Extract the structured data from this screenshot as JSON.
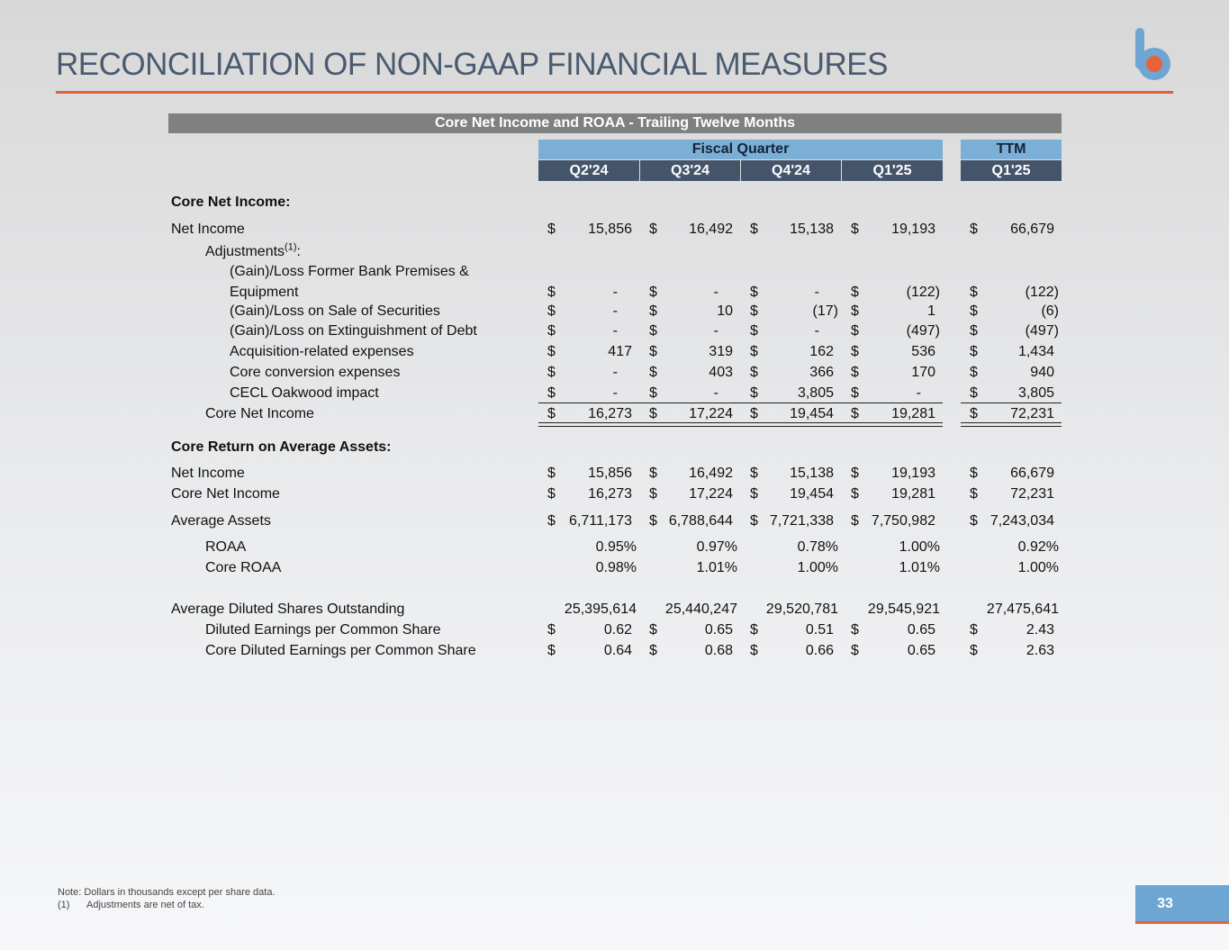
{
  "header": {
    "title": "RECONCILIATION OF NON-GAAP FINANCIAL MEASURES"
  },
  "table": {
    "title": "Core Net Income and ROAA - Trailing Twelve Months",
    "group_headers": [
      "Fiscal Quarter",
      "TTM"
    ],
    "columns": [
      "Q2'24",
      "Q3'24",
      "Q4'24",
      "Q1'25",
      "Q1'25"
    ],
    "sections": [
      {
        "heading": "Core Net Income:",
        "rows": [
          {
            "label": "Net Income",
            "currency": "$",
            "values": [
              "15,856",
              "16,492",
              "15,138",
              "19,193",
              "66,679"
            ]
          },
          {
            "label": "Adjustments",
            "note_ref": "(1)",
            "label_suffix": ":"
          },
          {
            "label": "(Gain)/Loss Former Bank Premises & Equipment",
            "currency": "$",
            "values": [
              "-",
              "-",
              "-",
              "(122)",
              "(122)"
            ]
          },
          {
            "label": "(Gain)/Loss on Sale of Securities",
            "currency": "$",
            "values": [
              "-",
              "10",
              "(17)",
              "1",
              "(6)"
            ]
          },
          {
            "label": "(Gain)/Loss on Extinguishment of Debt",
            "currency": "$",
            "values": [
              "-",
              "-",
              "-",
              "(497)",
              "(497)"
            ]
          },
          {
            "label": "Acquisition-related expenses",
            "currency": "$",
            "values": [
              "417",
              "319",
              "162",
              "536",
              "1,434"
            ]
          },
          {
            "label": "Core conversion expenses",
            "currency": "$",
            "values": [
              "-",
              "403",
              "366",
              "170",
              "940"
            ]
          },
          {
            "label": "CECL Oakwood impact",
            "currency": "$",
            "values": [
              "-",
              "-",
              "3,805",
              "-",
              "3,805"
            ]
          },
          {
            "label": "Core Net Income",
            "currency": "$",
            "values": [
              "16,273",
              "17,224",
              "19,454",
              "19,281",
              "72,231"
            ]
          }
        ]
      },
      {
        "heading": "Core Return on Average Assets:",
        "rows": [
          {
            "label": "Net Income",
            "currency": "$",
            "values": [
              "15,856",
              "16,492",
              "15,138",
              "19,193",
              "66,679"
            ]
          },
          {
            "label": "Core Net Income",
            "currency": "$",
            "values": [
              "16,273",
              "17,224",
              "19,454",
              "19,281",
              "72,231"
            ]
          },
          {
            "label": "Average Assets",
            "currency": "$",
            "values": [
              "6,711,173",
              "6,788,644",
              "7,721,338",
              "7,750,982",
              "7,243,034"
            ]
          },
          {
            "label": "ROAA",
            "values": [
              "0.95%",
              "0.97%",
              "0.78%",
              "1.00%",
              "0.92%"
            ]
          },
          {
            "label": "Core ROAA",
            "values": [
              "0.98%",
              "1.01%",
              "1.00%",
              "1.01%",
              "1.00%"
            ]
          },
          {
            "label": "Average Diluted Shares Outstanding",
            "values": [
              "25,395,614",
              "25,440,247",
              "29,520,781",
              "29,545,921",
              "27,475,641"
            ]
          },
          {
            "label": "Diluted Earnings per Common Share",
            "currency": "$",
            "values": [
              "0.62",
              "0.65",
              "0.51",
              "0.65",
              "2.43"
            ]
          },
          {
            "label": "Core Diluted Earnings per Common Share",
            "currency": "$",
            "values": [
              "0.64",
              "0.68",
              "0.66",
              "0.65",
              "2.63"
            ]
          }
        ]
      }
    ]
  },
  "footnotes": {
    "note": "Note: Dollars in thousands except per share data.",
    "items": [
      {
        "marker": "(1)",
        "text": "Adjustments are net of tax."
      }
    ]
  },
  "page_number": "33"
}
